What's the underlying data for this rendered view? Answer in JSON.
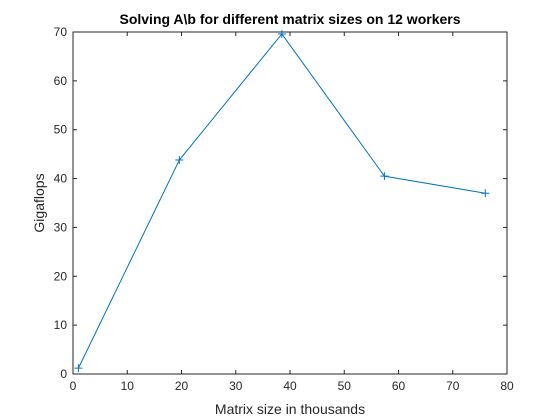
{
  "chart_data": {
    "type": "line",
    "title": "Solving A\\b for different matrix sizes on 12 workers",
    "xlabel": "Matrix size in thousands",
    "ylabel": "Gigaflops",
    "xlim": [
      0,
      80
    ],
    "ylim": [
      0,
      70
    ],
    "xticks": [
      0,
      10,
      20,
      30,
      40,
      50,
      60,
      70,
      80
    ],
    "yticks": [
      0,
      10,
      20,
      30,
      40,
      50,
      60,
      70
    ],
    "grid": false,
    "marker": "+",
    "color": "#0072bd",
    "series": [
      {
        "x": [
          1,
          19.6,
          38.5,
          57.4,
          76
        ],
        "values": [
          1.2,
          43.8,
          69.6,
          40.5,
          37
        ]
      }
    ]
  }
}
